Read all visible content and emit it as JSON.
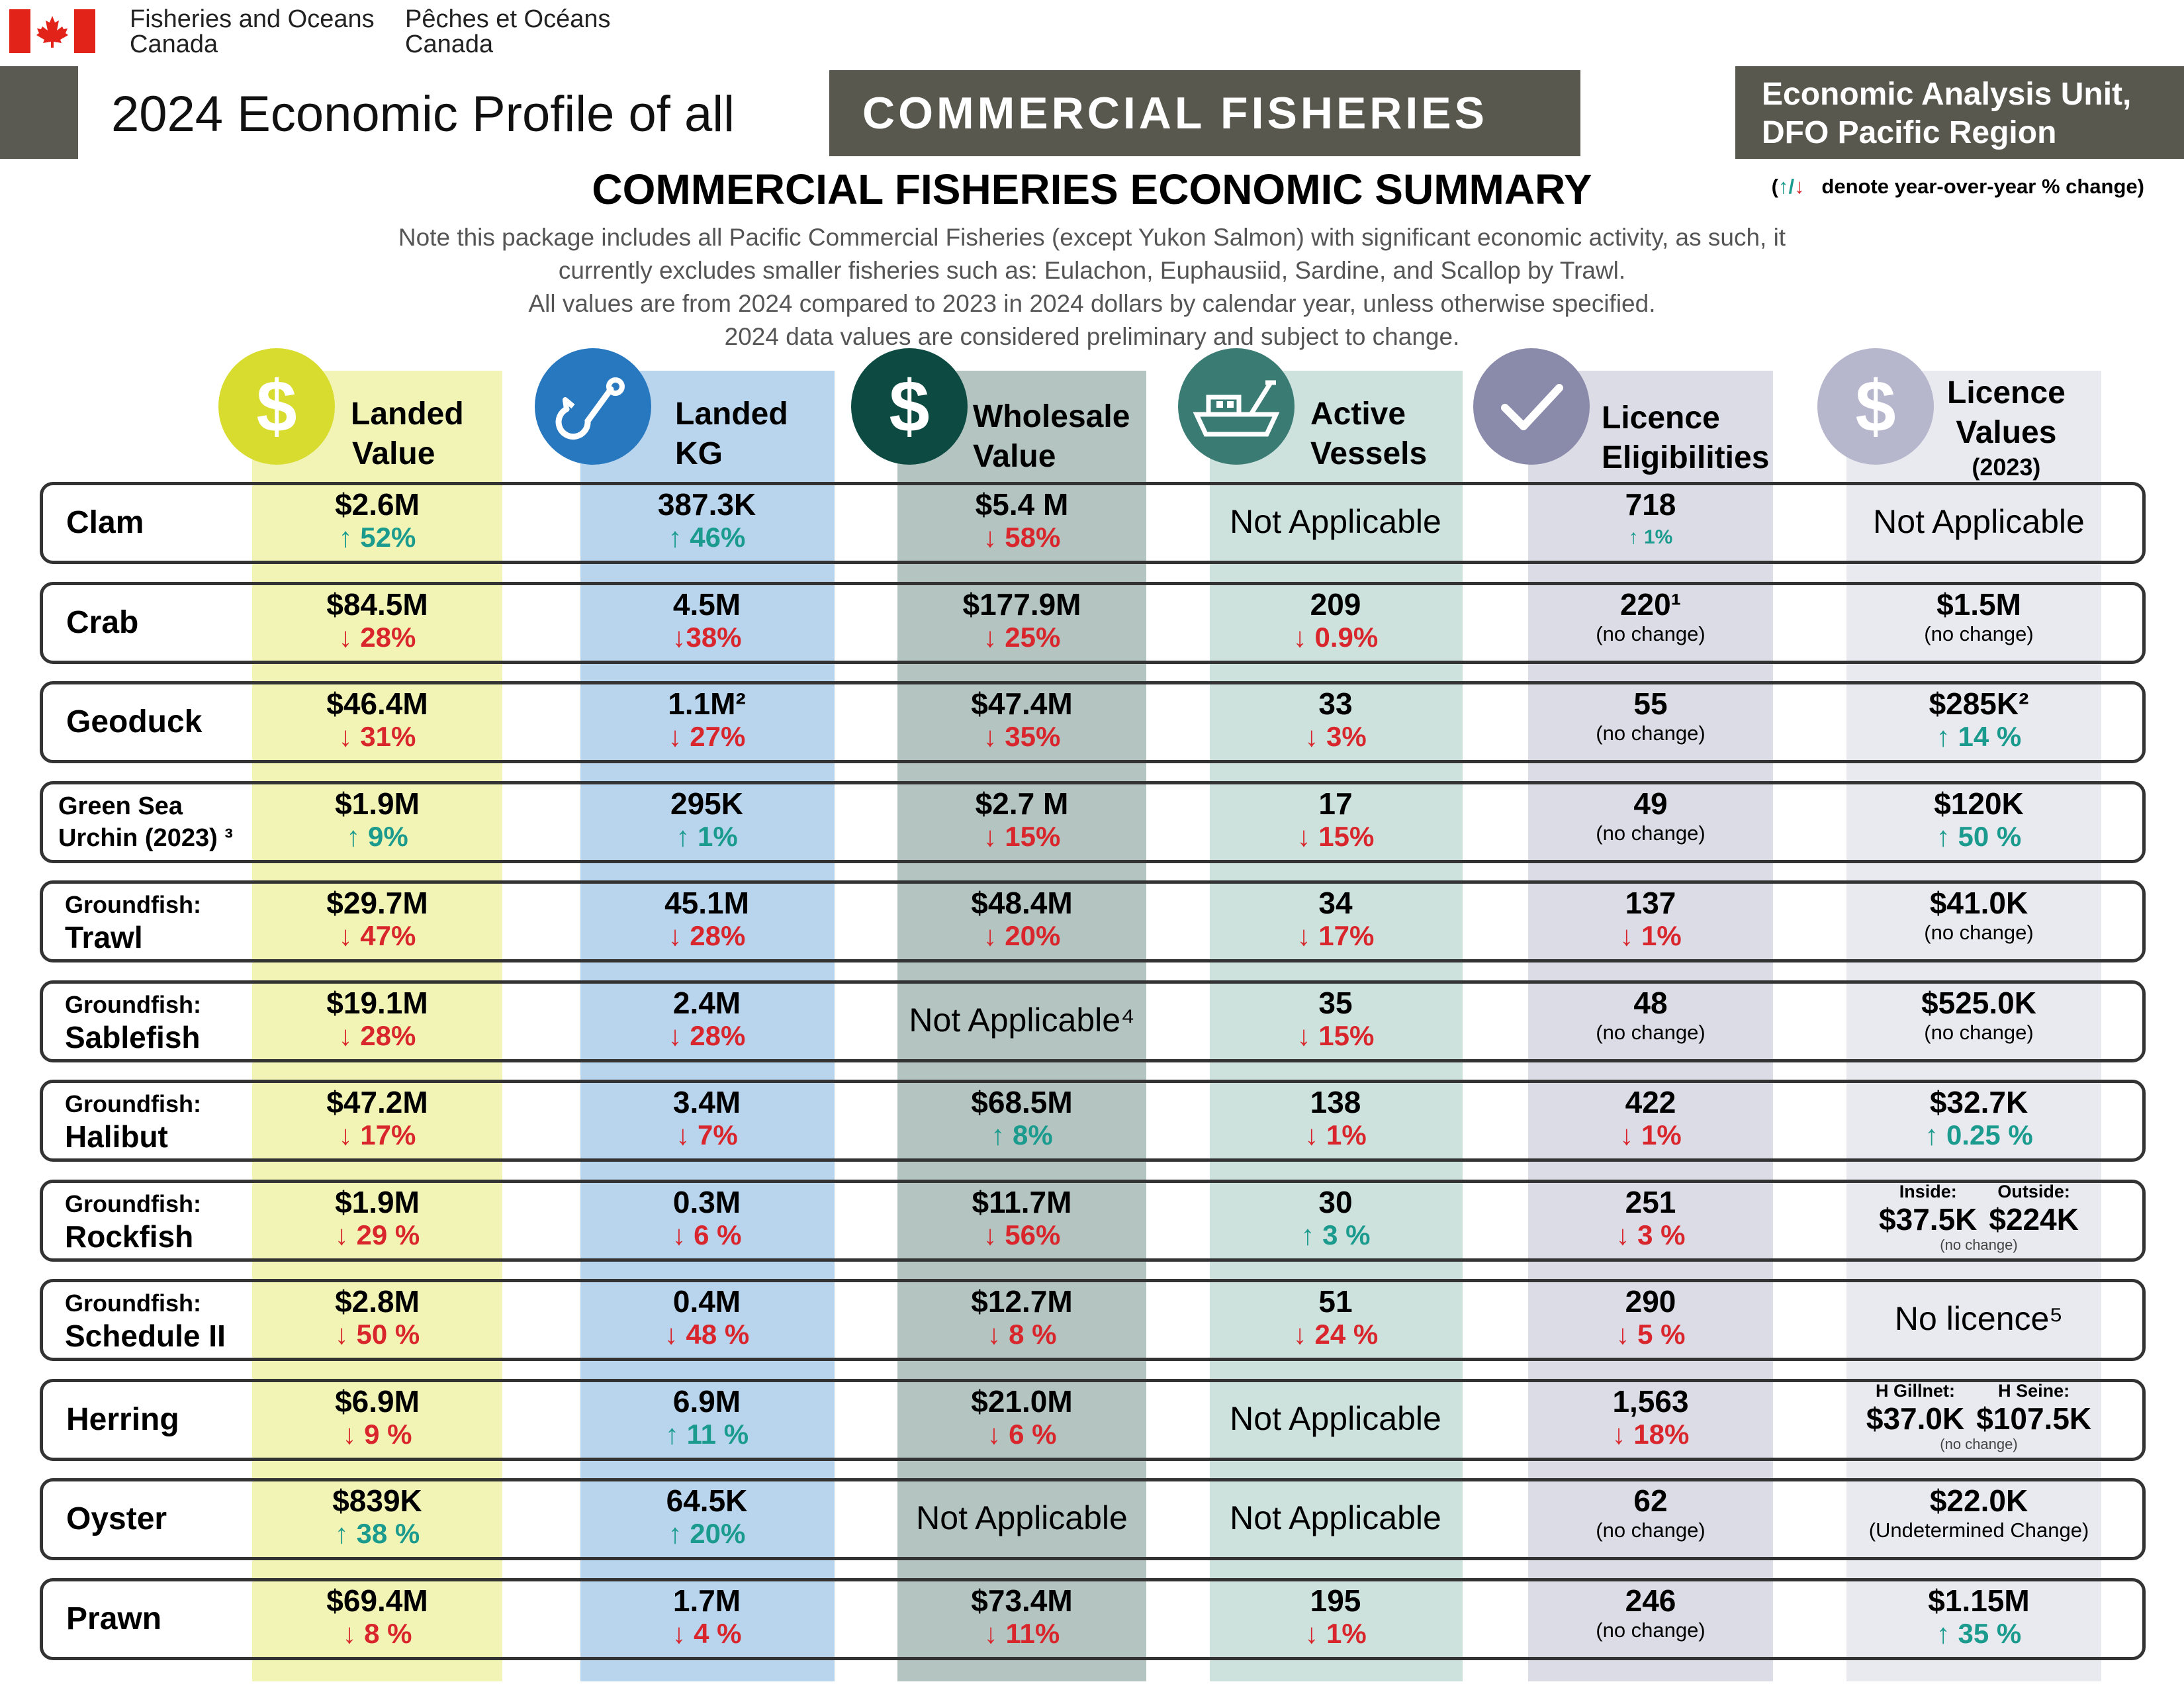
{
  "header": {
    "dept_en": "Fisheries and Oceans Canada",
    "dept_en_l1": "Fisheries and Oceans",
    "dept_en_l2": "Canada",
    "dept_fr_l1": "Pêches et Océans",
    "dept_fr_l2": "Canada",
    "title": "2024 Economic Profile of all",
    "title_box": "COMMERCIAL FISHERIES",
    "unit_l1": "Economic Analysis Unit,",
    "unit_l2": "DFO Pacific Region"
  },
  "summary": {
    "title": "COMMERCIAL FISHERIES ECONOMIC SUMMARY",
    "legend_up": "↑",
    "legend_sep": "/",
    "legend_down": "↓",
    "legend_text": "denote year-over-year % change)",
    "legend_open": "(",
    "note_lines": [
      "Note this package includes all Pacific Commercial Fisheries (except Yukon Salmon) with significant economic activity, as such, it",
      "currently excludes smaller fisheries such as: Eulachon, Euphausiid, Sardine, and Scallop by Trawl.",
      "All values are from 2024 compared to 2023 in 2024 dollars by calendar year, unless otherwise specified.",
      "2024 data values are considered preliminary and subject to change."
    ]
  },
  "columns": [
    {
      "l1": "Landed",
      "l2": "Value",
      "icon": "dollar-icon",
      "color": "#d8dc2f"
    },
    {
      "l1": "Landed",
      "l2": "KG",
      "icon": "fishhook-icon",
      "color": "#2878c0"
    },
    {
      "l1": "Wholesale",
      "l2": "Value",
      "icon": "dollar-icon",
      "color": "#0c4a42"
    },
    {
      "l1": "Active",
      "l2": "Vessels",
      "icon": "boat-icon",
      "color": "#3a7b74"
    },
    {
      "l1": "Licence",
      "l2": "Eligibilities",
      "icon": "checkmark-icon",
      "color": "#8a8aaa"
    },
    {
      "l1": "Licence",
      "l2": "Values",
      "l3": "(2023)",
      "icon": "dollar-icon",
      "color": "#b6b6cc"
    }
  ],
  "rows": [
    {
      "l1": "",
      "l2": "Clam",
      "c1": {
        "v": "$2.6M",
        "c": "↑ 52%",
        "d": "up"
      },
      "c2": {
        "v": "387.3K",
        "c": "↑ 46%",
        "d": "up"
      },
      "c3": {
        "v": "$5.4 M",
        "c": "↓ 58%",
        "d": "down"
      },
      "c4": {
        "na": "Not Applicable"
      },
      "c5": {
        "v": "718",
        "c": "↑ 1%",
        "d": "up"
      },
      "c6": {
        "na": "Not Applicable"
      }
    },
    {
      "l1": "",
      "l2": "Crab",
      "c1": {
        "v": "$84.5M",
        "c": "↓ 28%",
        "d": "down"
      },
      "c2": {
        "v": "4.5M",
        "c": "↓38%",
        "d": "down"
      },
      "c3": {
        "v": "$177.9M",
        "c": "↓ 25%",
        "d": "down"
      },
      "c4": {
        "v": "209",
        "c": "↓ 0.9%",
        "d": "down"
      },
      "c5": {
        "v": "220¹",
        "nc": "(no change)"
      },
      "c6": {
        "v": "$1.5M",
        "nc": "(no change)"
      }
    },
    {
      "l1": "",
      "l2": "Geoduck",
      "c1": {
        "v": "$46.4M",
        "c": "↓ 31%",
        "d": "down"
      },
      "c2": {
        "v": "1.1M²",
        "c": "↓ 27%",
        "d": "down"
      },
      "c3": {
        "v": "$47.4M",
        "c": "↓ 35%",
        "d": "down"
      },
      "c4": {
        "v": "33",
        "c": "↓ 3%",
        "d": "down"
      },
      "c5": {
        "v": "55",
        "nc": "(no change)"
      },
      "c6": {
        "v": "$285K²",
        "c": "↑ 14 %",
        "d": "up"
      }
    },
    {
      "l1": "Green Sea",
      "l2": "Urchin (2023) ³",
      "small": true,
      "c1": {
        "v": "$1.9M",
        "c": "↑ 9%",
        "d": "up"
      },
      "c2": {
        "v": "295K",
        "c": "↑ 1%",
        "d": "up"
      },
      "c3": {
        "v": "$2.7 M",
        "c": "↓ 15%",
        "d": "down"
      },
      "c4": {
        "v": "17",
        "c": "↓ 15%",
        "d": "down"
      },
      "c5": {
        "v": "49",
        "nc": "(no change)"
      },
      "c6": {
        "v": "$120K",
        "c": "↑ 50 %",
        "d": "up"
      }
    },
    {
      "l1": "Groundfish:",
      "l2": "Trawl",
      "c1": {
        "v": "$29.7M",
        "c": "↓ 47%",
        "d": "down"
      },
      "c2": {
        "v": "45.1M",
        "c": "↓ 28%",
        "d": "down"
      },
      "c3": {
        "v": "$48.4M",
        "c": "↓ 20%",
        "d": "down"
      },
      "c4": {
        "v": "34",
        "c": "↓ 17%",
        "d": "down"
      },
      "c5": {
        "v": "137",
        "c": "↓ 1%",
        "d": "down"
      },
      "c6": {
        "v": "$41.0K",
        "nc": "(no change)"
      }
    },
    {
      "l1": "Groundfish:",
      "l2": "Sablefish",
      "c1": {
        "v": "$19.1M",
        "c": "↓ 28%",
        "d": "down"
      },
      "c2": {
        "v": "2.4M",
        "c": "↓ 28%",
        "d": "down"
      },
      "c3": {
        "na": "Not Applicable⁴"
      },
      "c4": {
        "v": "35",
        "c": "↓ 15%",
        "d": "down"
      },
      "c5": {
        "v": "48",
        "nc": "(no change)"
      },
      "c6": {
        "v": "$525.0K",
        "nc": "(no change)"
      }
    },
    {
      "l1": "Groundfish:",
      "l2": "Halibut",
      "c1": {
        "v": "$47.2M",
        "c": "↓ 17%",
        "d": "down"
      },
      "c2": {
        "v": "3.4M",
        "c": "↓ 7%",
        "d": "down"
      },
      "c3": {
        "v": "$68.5M",
        "c": "↑ 8%",
        "d": "up"
      },
      "c4": {
        "v": "138",
        "c": "↓ 1%",
        "d": "down"
      },
      "c5": {
        "v": "422",
        "c": "↓ 1%",
        "d": "down"
      },
      "c6": {
        "v": "$32.7K",
        "c": "↑ 0.25 %",
        "d": "up"
      }
    },
    {
      "l1": "Groundfish:",
      "l2": "Rockfish",
      "c1": {
        "v": "$1.9M",
        "c": "↓ 29 %",
        "d": "down"
      },
      "c2": {
        "v": "0.3M",
        "c": "↓ 6 %",
        "d": "down"
      },
      "c3": {
        "v": "$11.7M",
        "c": "↓ 56%",
        "d": "down"
      },
      "c4": {
        "v": "30",
        "c": "↑ 3 %",
        "d": "up"
      },
      "c5": {
        "v": "251",
        "c": "↓ 3 %",
        "d": "down"
      },
      "c6": {
        "split": true,
        "a_lbl": "Inside:",
        "a_val": "$37.5K",
        "b_lbl": "Outside:",
        "b_val": "$224K",
        "nc": "(no change)"
      }
    },
    {
      "l1": "Groundfish:",
      "l2": "Schedule II",
      "c1": {
        "v": "$2.8M",
        "c": "↓ 50 %",
        "d": "down"
      },
      "c2": {
        "v": "0.4M",
        "c": "↓ 48 %",
        "d": "down"
      },
      "c3": {
        "v": "$12.7M",
        "c": "↓ 8 %",
        "d": "down"
      },
      "c4": {
        "v": "51",
        "c": "↓ 24 %",
        "d": "down"
      },
      "c5": {
        "v": "290",
        "c": "↓ 5 %",
        "d": "down"
      },
      "c6": {
        "na": "No licence⁵"
      }
    },
    {
      "l1": "",
      "l2": "Herring",
      "c1": {
        "v": "$6.9M",
        "c": "↓ 9 %",
        "d": "down"
      },
      "c2": {
        "v": "6.9M",
        "c": "↑ 11 %",
        "d": "up"
      },
      "c3": {
        "v": "$21.0M",
        "c": "↓ 6 %",
        "d": "down"
      },
      "c4": {
        "na": "Not Applicable"
      },
      "c5": {
        "v": "1,563",
        "c": "↓ 18%",
        "d": "down"
      },
      "c6": {
        "split": true,
        "a_lbl": "H Gillnet:",
        "a_val": "$37.0K",
        "b_lbl": "H Seine:",
        "b_val": "$107.5K",
        "nc": "(no change)"
      }
    },
    {
      "l1": "",
      "l2": "Oyster",
      "c1": {
        "v": "$839K",
        "c": "↑ 38 %",
        "d": "up"
      },
      "c2": {
        "v": "64.5K",
        "c": "↑ 20%",
        "d": "up"
      },
      "c3": {
        "na": "Not Applicable"
      },
      "c4": {
        "na": "Not Applicable"
      },
      "c5": {
        "v": "62",
        "nc": "(no change)"
      },
      "c6": {
        "v": "$22.0K",
        "nc": "(Undetermined Change)"
      }
    },
    {
      "l1": "",
      "l2": "Prawn",
      "c1": {
        "v": "$69.4M",
        "c": "↓ 8 %",
        "d": "down"
      },
      "c2": {
        "v": "1.7M",
        "c": "↓ 4 %",
        "d": "down"
      },
      "c3": {
        "v": "$73.4M",
        "c": "↓ 11%",
        "d": "down"
      },
      "c4": {
        "v": "195",
        "c": "↓ 1%",
        "d": "down"
      },
      "c5": {
        "v": "246",
        "nc": "(no change)"
      },
      "c6": {
        "v": "$1.15M",
        "c": "↑ 35 %",
        "d": "up"
      }
    }
  ]
}
